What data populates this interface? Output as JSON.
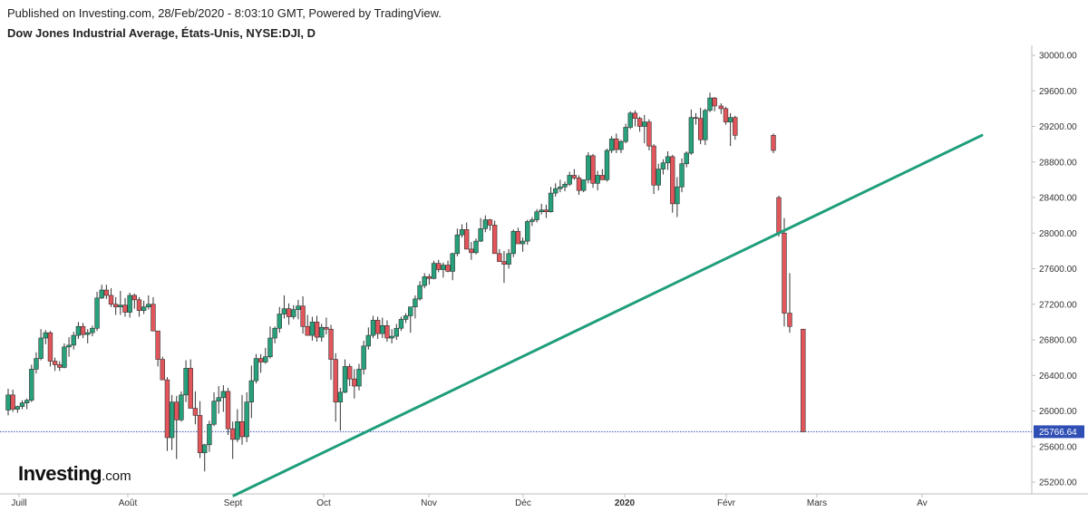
{
  "header": {
    "published": "Published on Investing.com, 28/Feb/2020 - 8:03:10 GMT, Powered by TradingView.",
    "instrument": "Dow Jones Industrial Average, États-Unis, NYSE:DJI, D"
  },
  "logo": {
    "main": "Investing",
    "suffix": ".com"
  },
  "colors": {
    "up": "#26a17b",
    "down": "#e2555b",
    "outline": "#333333",
    "trendline": "#1f9e7c",
    "price_line": "#2f4fb5",
    "price_tag": "#2f4fb5",
    "axis": "#bfbfbf"
  },
  "chart_data": {
    "type": "candlestick",
    "title": "",
    "ylim": [
      25000,
      30200
    ],
    "y_ticks": [
      30000,
      29600,
      29200,
      28800,
      28400,
      28000,
      27600,
      27200,
      26800,
      26400,
      26000,
      25600,
      25200
    ],
    "y_tick_labels": [
      "30000.00",
      "29600.00",
      "29200.00",
      "28800.00",
      "28400.00",
      "28000.00",
      "27600.00",
      "27200.00",
      "26800.00",
      "26400.00",
      "26000.00",
      "25600.00",
      "25200.00"
    ],
    "x_ticks": [
      {
        "label": "Juill",
        "day": 3,
        "bold": false
      },
      {
        "label": "Août",
        "day": 33,
        "bold": false
      },
      {
        "label": "Sept",
        "day": 62,
        "bold": false
      },
      {
        "label": "Oct",
        "day": 87,
        "bold": false
      },
      {
        "label": "Nov",
        "day": 116,
        "bold": false
      },
      {
        "label": "Déc",
        "day": 142,
        "bold": false
      },
      {
        "label": "2020",
        "day": 170,
        "bold": true
      },
      {
        "label": "Févr",
        "day": 198,
        "bold": false
      },
      {
        "label": "Mars",
        "day": 223,
        "bold": false
      },
      {
        "label": "Av",
        "day": 252,
        "bold": false
      }
    ],
    "last_price": 25766.64,
    "last_price_label": "25766.64",
    "trendline": {
      "from": {
        "day": 61,
        "value": 25130
      },
      "to": {
        "day": 260,
        "value": 29100
      }
    },
    "candles_ohlc": [
      [
        26010,
        26250,
        25950,
        26180
      ],
      [
        26180,
        26240,
        25990,
        26020
      ],
      [
        26020,
        26060,
        25980,
        26050
      ],
      [
        26050,
        26120,
        26020,
        26090
      ],
      [
        26090,
        26140,
        26020,
        26120
      ],
      [
        26120,
        26520,
        26100,
        26470
      ],
      [
        26470,
        26660,
        26420,
        26590
      ],
      [
        26590,
        26920,
        26570,
        26820
      ],
      [
        26820,
        26910,
        26750,
        26880
      ],
      [
        26880,
        26900,
        26500,
        26560
      ],
      [
        26560,
        26600,
        26450,
        26520
      ],
      [
        26520,
        26560,
        26450,
        26490
      ],
      [
        26490,
        26760,
        26480,
        26720
      ],
      [
        26720,
        26830,
        26610,
        26740
      ],
      [
        26740,
        26890,
        26690,
        26850
      ],
      [
        26850,
        27000,
        26810,
        26950
      ],
      [
        26950,
        26990,
        26820,
        26860
      ],
      [
        26860,
        26920,
        26760,
        26880
      ],
      [
        26880,
        26960,
        26840,
        26930
      ],
      [
        26930,
        27340,
        26900,
        27270
      ],
      [
        27270,
        27420,
        27260,
        27360
      ],
      [
        27360,
        27420,
        27260,
        27300
      ],
      [
        27300,
        27380,
        27170,
        27200
      ],
      [
        27200,
        27280,
        27080,
        27170
      ],
      [
        27170,
        27350,
        27080,
        27190
      ],
      [
        27190,
        27270,
        27060,
        27110
      ],
      [
        27110,
        27330,
        27050,
        27300
      ],
      [
        27300,
        27320,
        27150,
        27250
      ],
      [
        27250,
        27280,
        27060,
        27130
      ],
      [
        27130,
        27240,
        27090,
        27170
      ],
      [
        27170,
        27300,
        27140,
        27200
      ],
      [
        27200,
        27280,
        26980,
        26900
      ],
      [
        26900,
        26880,
        26500,
        26580
      ],
      [
        26580,
        26610,
        26400,
        26350
      ],
      [
        26350,
        26380,
        25550,
        25700
      ],
      [
        25700,
        26180,
        25560,
        26100
      ],
      [
        26100,
        26170,
        25460,
        25900
      ],
      [
        25900,
        26220,
        25880,
        26180
      ],
      [
        26180,
        26570,
        26100,
        26480
      ],
      [
        26480,
        26580,
        26040,
        26030
      ],
      [
        26030,
        26220,
        25850,
        25950
      ],
      [
        25950,
        26110,
        25470,
        25530
      ],
      [
        25530,
        25630,
        25320,
        25620
      ],
      [
        25620,
        25890,
        25540,
        25850
      ],
      [
        25850,
        26210,
        25830,
        26110
      ],
      [
        26110,
        26280,
        25970,
        26150
      ],
      [
        26150,
        26290,
        25990,
        26220
      ],
      [
        26220,
        26260,
        25730,
        25800
      ],
      [
        25800,
        25880,
        25460,
        25680
      ],
      [
        25680,
        26020,
        25650,
        25880
      ],
      [
        25880,
        26180,
        25620,
        25710
      ],
      [
        25710,
        26210,
        25650,
        26100
      ],
      [
        26100,
        26510,
        25920,
        26340
      ],
      [
        26340,
        26640,
        26310,
        26590
      ],
      [
        26590,
        26640,
        26430,
        26550
      ],
      [
        26550,
        26710,
        26530,
        26610
      ],
      [
        26610,
        26950,
        26590,
        26820
      ],
      [
        26820,
        26950,
        26760,
        26930
      ],
      [
        26930,
        27170,
        26880,
        27090
      ],
      [
        27090,
        27300,
        27040,
        27150
      ],
      [
        27150,
        27210,
        26970,
        27060
      ],
      [
        27060,
        27190,
        27030,
        27140
      ],
      [
        27140,
        27250,
        27030,
        27180
      ],
      [
        27180,
        27290,
        26870,
        26950
      ],
      [
        26950,
        27080,
        26870,
        26850
      ],
      [
        26850,
        27060,
        26790,
        27000
      ],
      [
        27000,
        27070,
        26780,
        26830
      ],
      [
        26830,
        26980,
        26780,
        26940
      ],
      [
        26940,
        27050,
        26860,
        26920
      ],
      [
        26920,
        26970,
        26350,
        26580
      ],
      [
        26580,
        26650,
        25880,
        26100
      ],
      [
        26100,
        26260,
        25780,
        26210
      ],
      [
        26210,
        26580,
        26200,
        26500
      ],
      [
        26500,
        26530,
        26280,
        26360
      ],
      [
        26360,
        26470,
        26140,
        26280
      ],
      [
        26280,
        26530,
        26230,
        26470
      ],
      [
        26470,
        26790,
        26410,
        26730
      ],
      [
        26730,
        26940,
        26690,
        26850
      ],
      [
        26850,
        27070,
        26820,
        27020
      ],
      [
        27020,
        27060,
        26810,
        26870
      ],
      [
        26870,
        27050,
        26820,
        26960
      ],
      [
        26960,
        27020,
        26780,
        26820
      ],
      [
        26820,
        26920,
        26760,
        26840
      ],
      [
        26840,
        26980,
        26800,
        26930
      ],
      [
        26930,
        27060,
        26900,
        27030
      ],
      [
        27030,
        27100,
        26990,
        27070
      ],
      [
        27070,
        27170,
        26880,
        27170
      ],
      [
        27170,
        27300,
        27040,
        27260
      ],
      [
        27260,
        27460,
        27240,
        27410
      ],
      [
        27410,
        27550,
        27380,
        27510
      ],
      [
        27510,
        27540,
        27420,
        27490
      ],
      [
        27490,
        27690,
        27480,
        27660
      ],
      [
        27660,
        27700,
        27560,
        27590
      ],
      [
        27590,
        27670,
        27500,
        27640
      ],
      [
        27640,
        27690,
        27560,
        27570
      ],
      [
        27570,
        27780,
        27470,
        27770
      ],
      [
        27770,
        28050,
        27740,
        27980
      ],
      [
        27980,
        28100,
        27950,
        28040
      ],
      [
        28040,
        28120,
        27900,
        27820
      ],
      [
        27820,
        27900,
        27700,
        27780
      ],
      [
        27780,
        27940,
        27760,
        27910
      ],
      [
        27910,
        28170,
        27900,
        28050
      ],
      [
        28050,
        28200,
        28010,
        28150
      ],
      [
        28150,
        28160,
        28030,
        28090
      ],
      [
        28090,
        28140,
        27850,
        27770
      ],
      [
        27770,
        27820,
        27690,
        27680
      ],
      [
        27680,
        27800,
        27440,
        27650
      ],
      [
        27650,
        27820,
        27600,
        27770
      ],
      [
        27770,
        28040,
        27730,
        28020
      ],
      [
        28020,
        28060,
        27960,
        27880
      ],
      [
        27880,
        27950,
        27790,
        27910
      ],
      [
        27910,
        28150,
        27870,
        28130
      ],
      [
        28130,
        28180,
        28080,
        28150
      ],
      [
        28150,
        28270,
        28120,
        28240
      ],
      [
        28240,
        28330,
        28210,
        28260
      ],
      [
        28260,
        28320,
        28170,
        28240
      ],
      [
        28240,
        28520,
        28230,
        28450
      ],
      [
        28450,
        28560,
        28410,
        28500
      ],
      [
        28500,
        28600,
        28460,
        28520
      ],
      [
        28520,
        28580,
        28470,
        28550
      ],
      [
        28550,
        28690,
        28530,
        28650
      ],
      [
        28650,
        28720,
        28600,
        28620
      ],
      [
        28620,
        28650,
        28430,
        28480
      ],
      [
        28480,
        28600,
        28460,
        28600
      ],
      [
        28600,
        28910,
        28560,
        28870
      ],
      [
        28870,
        28890,
        28510,
        28560
      ],
      [
        28560,
        28700,
        28480,
        28650
      ],
      [
        28650,
        28720,
        28600,
        28600
      ],
      [
        28600,
        28950,
        28580,
        28930
      ],
      [
        28930,
        29090,
        28900,
        29060
      ],
      [
        29060,
        29120,
        28900,
        28940
      ],
      [
        28940,
        29050,
        28900,
        29030
      ],
      [
        29030,
        29230,
        29010,
        29190
      ],
      [
        29190,
        29370,
        29170,
        29350
      ],
      [
        29350,
        29380,
        29200,
        29290
      ],
      [
        29290,
        29310,
        29140,
        29200
      ],
      [
        29200,
        29330,
        29010,
        29250
      ],
      [
        29250,
        29280,
        28930,
        28980
      ],
      [
        28980,
        29000,
        28440,
        28540
      ],
      [
        28540,
        28780,
        28480,
        28720
      ],
      [
        28720,
        28830,
        28660,
        28790
      ],
      [
        28790,
        28920,
        28710,
        28860
      ],
      [
        28860,
        28880,
        28230,
        28330
      ],
      [
        28330,
        28630,
        28180,
        28520
      ],
      [
        28520,
        28840,
        28460,
        28780
      ],
      [
        28780,
        28920,
        28740,
        28900
      ],
      [
        28900,
        29390,
        28880,
        29300
      ],
      [
        29300,
        29350,
        29220,
        29290
      ],
      [
        29290,
        29410,
        29000,
        29050
      ],
      [
        29050,
        29400,
        28990,
        29380
      ],
      [
        29380,
        29580,
        29360,
        29520
      ],
      [
        29520,
        29530,
        29370,
        29430
      ],
      [
        29430,
        29460,
        29340,
        29400
      ],
      [
        29400,
        29420,
        29220,
        29250
      ],
      [
        29250,
        29350,
        28980,
        29300
      ],
      [
        29300,
        29320,
        29050,
        29100
      ],
      [
        29100,
        29120,
        28900,
        28930
      ],
      [
        28400,
        28420,
        27960,
        28000
      ],
      [
        28000,
        28170,
        26950,
        27100
      ],
      [
        27100,
        27550,
        26880,
        26950
      ],
      [
        26920,
        26780,
        25760,
        25766.64
      ]
    ]
  }
}
